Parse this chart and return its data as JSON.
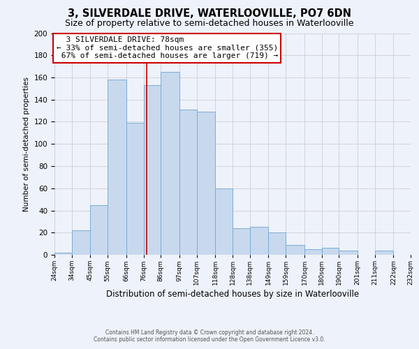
{
  "title": "3, SILVERDALE DRIVE, WATERLOOVILLE, PO7 6DN",
  "subtitle": "Size of property relative to semi-detached houses in Waterlooville",
  "xlabel": "Distribution of semi-detached houses by size in Waterlooville",
  "ylabel": "Number of semi-detached properties",
  "bins": [
    24,
    34,
    45,
    55,
    66,
    76,
    86,
    97,
    107,
    118,
    128,
    138,
    149,
    159,
    170,
    180,
    190,
    201,
    211,
    222,
    232
  ],
  "counts": [
    2,
    22,
    45,
    158,
    119,
    153,
    165,
    131,
    129,
    60,
    24,
    25,
    20,
    9,
    5,
    6,
    4,
    0,
    4,
    0
  ],
  "bar_color": "#c8d9ee",
  "bar_edge_color": "#7aadd4",
  "property_size": 78,
  "vline_color": "#cc0000",
  "annotation_title": "3 SILVERDALE DRIVE: 78sqm",
  "annotation_line1": "← 33% of semi-detached houses are smaller (355)",
  "annotation_line2": "67% of semi-detached houses are larger (719) →",
  "annotation_box_color": "#ffffff",
  "annotation_box_edge": "#cc0000",
  "ylim": [
    0,
    200
  ],
  "yticks": [
    0,
    20,
    40,
    60,
    80,
    100,
    120,
    140,
    160,
    180,
    200
  ],
  "tick_labels": [
    "24sqm",
    "34sqm",
    "45sqm",
    "55sqm",
    "66sqm",
    "76sqm",
    "86sqm",
    "97sqm",
    "107sqm",
    "118sqm",
    "128sqm",
    "138sqm",
    "149sqm",
    "159sqm",
    "170sqm",
    "180sqm",
    "190sqm",
    "201sqm",
    "211sqm",
    "222sqm",
    "232sqm"
  ],
  "footer1": "Contains HM Land Registry data © Crown copyright and database right 2024.",
  "footer2": "Contains public sector information licensed under the Open Government Licence v3.0.",
  "bg_color": "#eef2fa",
  "grid_color": "#c8c8c8",
  "title_fontsize": 10.5,
  "subtitle_fontsize": 9,
  "ylabel_fontsize": 7.5,
  "xlabel_fontsize": 8.5
}
